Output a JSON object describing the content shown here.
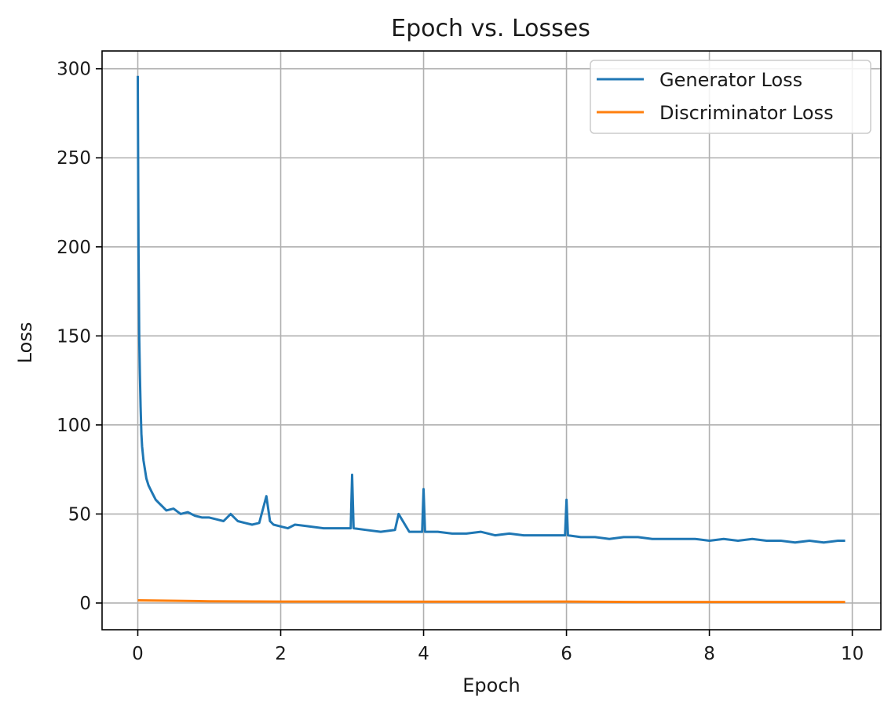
{
  "chart_data": {
    "type": "line",
    "title": "Epoch vs. Losses",
    "xlabel": "Epoch",
    "ylabel": "Loss",
    "xlim": [
      -0.5,
      10.4
    ],
    "ylim": [
      -15,
      310
    ],
    "xticks": [
      0,
      2,
      4,
      6,
      8,
      10
    ],
    "yticks": [
      0,
      50,
      100,
      150,
      200,
      250,
      300
    ],
    "grid": true,
    "legend_position": "top-right",
    "series": [
      {
        "name": "Generator Loss",
        "color": "#1f77b4",
        "x": [
          0,
          0.01,
          0.02,
          0.03,
          0.04,
          0.05,
          0.06,
          0.08,
          0.1,
          0.12,
          0.15,
          0.2,
          0.25,
          0.3,
          0.35,
          0.4,
          0.5,
          0.6,
          0.7,
          0.8,
          0.9,
          1.0,
          1.1,
          1.2,
          1.3,
          1.4,
          1.5,
          1.6,
          1.7,
          1.8,
          1.85,
          1.9,
          2.0,
          2.1,
          2.2,
          2.4,
          2.6,
          2.8,
          2.98,
          3.0,
          3.02,
          3.2,
          3.4,
          3.6,
          3.65,
          3.8,
          3.98,
          4.0,
          4.02,
          4.2,
          4.4,
          4.6,
          4.8,
          5.0,
          5.2,
          5.4,
          5.6,
          5.8,
          5.98,
          6.0,
          6.02,
          6.2,
          6.4,
          6.6,
          6.8,
          7.0,
          7.2,
          7.4,
          7.6,
          7.8,
          8.0,
          8.2,
          8.4,
          8.6,
          8.8,
          9.0,
          9.2,
          9.4,
          9.6,
          9.8,
          9.9
        ],
        "y": [
          296,
          200,
          150,
          128,
          110,
          95,
          88,
          80,
          75,
          70,
          66,
          62,
          58,
          56,
          54,
          52,
          53,
          50,
          51,
          49,
          48,
          48,
          47,
          46,
          50,
          46,
          45,
          44,
          45,
          60,
          46,
          44,
          43,
          42,
          44,
          43,
          42,
          42,
          42,
          72,
          42,
          41,
          40,
          41,
          50,
          40,
          40,
          64,
          40,
          40,
          39,
          39,
          40,
          38,
          39,
          38,
          38,
          38,
          38,
          58,
          38,
          37,
          37,
          36,
          37,
          37,
          36,
          36,
          36,
          36,
          35,
          36,
          35,
          36,
          35,
          35,
          34,
          35,
          34,
          35,
          35
        ]
      },
      {
        "name": "Discriminator Loss",
        "color": "#ff7f0e",
        "x": [
          0,
          1,
          2,
          3,
          4,
          5,
          6,
          7,
          8,
          9,
          9.9
        ],
        "y": [
          1.5,
          1.0,
          0.8,
          0.8,
          0.7,
          0.7,
          0.8,
          0.6,
          0.6,
          0.6,
          0.6
        ]
      }
    ]
  }
}
